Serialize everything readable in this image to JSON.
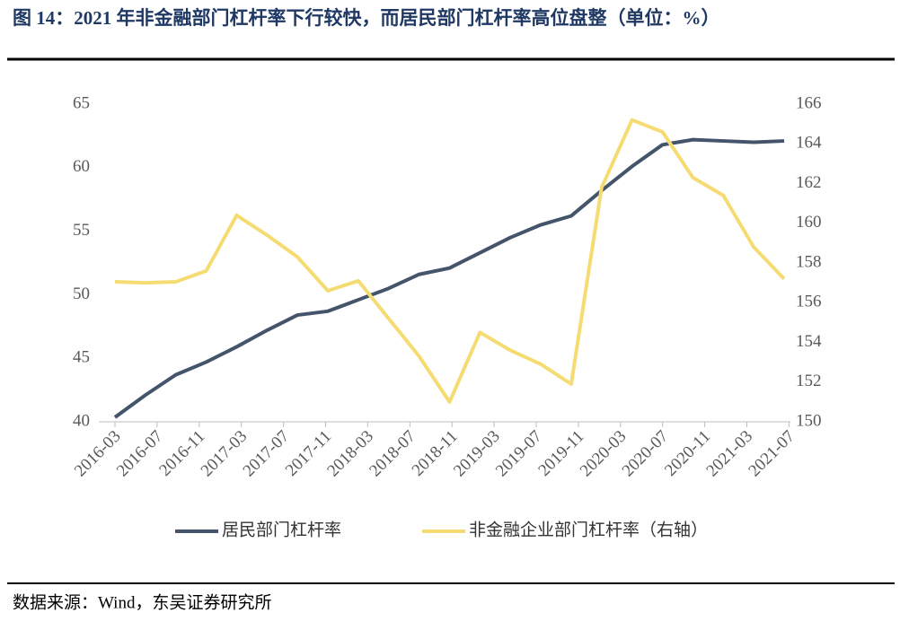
{
  "chart_data": {
    "type": "line",
    "title": "图 14：2021 年非金融部门杠杆率下行较快，而居民部门杠杆率高位盘整（单位：%）",
    "source": "数据来源：Wind，东吴证券研究所",
    "xticks": [
      "2016-03",
      "2016-07",
      "2016-11",
      "2017-03",
      "2017-07",
      "2017-11",
      "2018-03",
      "2018-07",
      "2018-11",
      "2019-03",
      "2019-07",
      "2019-11",
      "2020-03",
      "2020-07",
      "2020-11",
      "2021-03",
      "2021-07"
    ],
    "ylim": [
      40,
      65
    ],
    "yticks": [
      40,
      45,
      50,
      55,
      60,
      65
    ],
    "y2lim": [
      150,
      166
    ],
    "y2ticks": [
      150,
      152,
      154,
      156,
      158,
      160,
      162,
      164,
      166
    ],
    "series": [
      {
        "name": "居民部门杠杆率",
        "color": "#44546a",
        "values": [
          40.35,
          42.1,
          43.7,
          44.7,
          45.9,
          47.2,
          48.4,
          48.7,
          49.6,
          50.5,
          51.6,
          52.1,
          53.3,
          54.5,
          55.5,
          56.2,
          58.2,
          60.1,
          61.8,
          62.2,
          62.1,
          62.0,
          62.1
        ]
      },
      {
        "name": "非金融企业部门杠杆率（右轴）",
        "color": "#f5dc72",
        "axis": "y2",
        "values": [
          157.05,
          157.0,
          157.05,
          157.6,
          160.4,
          159.4,
          158.3,
          156.6,
          157.1,
          155.2,
          153.3,
          151.0,
          154.5,
          153.6,
          152.9,
          151.9,
          161.8,
          165.2,
          164.6,
          162.3,
          161.4,
          158.8,
          157.2
        ]
      }
    ]
  }
}
